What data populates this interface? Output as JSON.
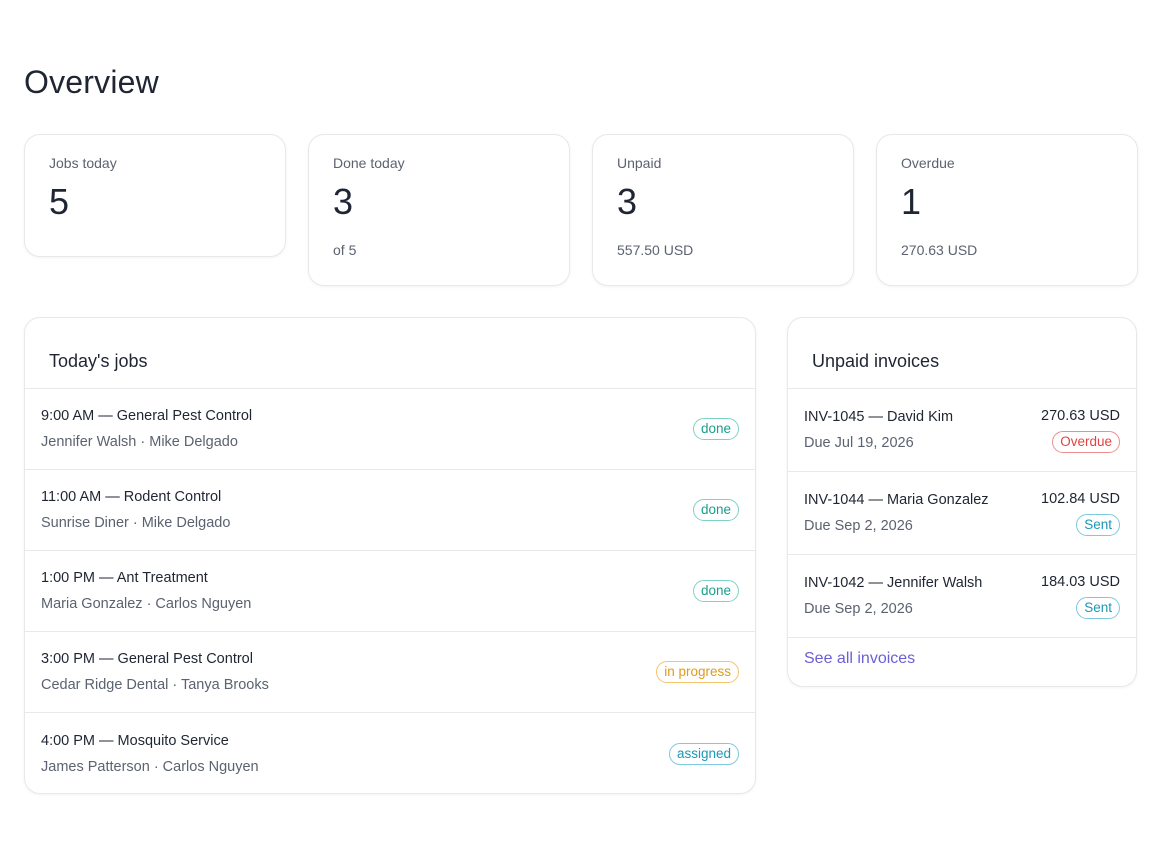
{
  "page": {
    "title": "Overview"
  },
  "stats": [
    {
      "label": "Jobs today",
      "value": "5",
      "sub": ""
    },
    {
      "label": "Done today",
      "value": "3",
      "sub": "of 5"
    },
    {
      "label": "Unpaid",
      "value": "3",
      "sub": "557.50 USD"
    },
    {
      "label": "Overdue",
      "value": "1",
      "sub": "270.63 USD"
    }
  ],
  "jobs": {
    "title": "Today's jobs",
    "items": [
      {
        "title": "9:00 AM — General Pest Control",
        "sub": "Jennifer Walsh · Mike Delgado",
        "status": "done"
      },
      {
        "title": "11:00 AM — Rodent Control",
        "sub": "Sunrise Diner · Mike Delgado",
        "status": "done"
      },
      {
        "title": "1:00 PM — Ant Treatment",
        "sub": "Maria Gonzalez · Carlos Nguyen",
        "status": "done"
      },
      {
        "title": "3:00 PM — General Pest Control",
        "sub": "Cedar Ridge Dental · Tanya Brooks",
        "status": "in progress"
      },
      {
        "title": "4:00 PM — Mosquito Service",
        "sub": "James Patterson · Carlos Nguyen",
        "status": "assigned"
      }
    ]
  },
  "invoices": {
    "title": "Unpaid invoices",
    "items": [
      {
        "title": "INV-1045 — David Kim",
        "due": "Due Jul 19, 2026",
        "amount": "270.63 USD",
        "status": "Overdue"
      },
      {
        "title": "INV-1044 — Maria Gonzalez",
        "due": "Due Sep 2, 2026",
        "amount": "102.84 USD",
        "status": "Sent"
      },
      {
        "title": "INV-1042 — Jennifer Walsh",
        "due": "Due Sep 2, 2026",
        "amount": "184.03 USD",
        "status": "Sent"
      }
    ],
    "see_all": "See all invoices"
  },
  "colors": {
    "done": "#1a9e8f",
    "in_progress": "#e09a1b",
    "assigned": "#1b97b8",
    "overdue": "#e04343",
    "sent": "#1b97b8",
    "link": "#6c5fd6"
  }
}
